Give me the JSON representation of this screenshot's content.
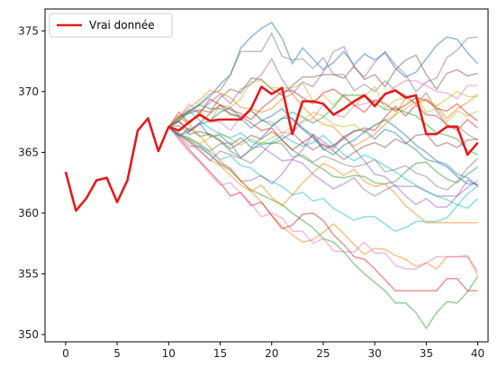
{
  "chart_data": {
    "type": "line",
    "title": "",
    "xlabel": "",
    "ylabel": "",
    "xlim": [
      -2,
      41
    ],
    "ylim": [
      349.4,
      376.8
    ],
    "xticks": [
      0,
      5,
      10,
      15,
      20,
      25,
      30,
      35,
      40
    ],
    "yticks": [
      350,
      355,
      360,
      365,
      370,
      375
    ],
    "legend": {
      "placement": "top-left",
      "entries": [
        "Vrai donnée"
      ]
    },
    "grid": false,
    "series": [
      {
        "name": "Vrai donnée",
        "color": "#e41a1c",
        "x": [
          0,
          1,
          2,
          3,
          4,
          5,
          6,
          7,
          8,
          9,
          10,
          11,
          12,
          13,
          14,
          15,
          16,
          17,
          18,
          19,
          20,
          21,
          22,
          23,
          24,
          25,
          26,
          27,
          28,
          29,
          30,
          31,
          32,
          33,
          34,
          35,
          36,
          37,
          38,
          39,
          40
        ],
        "values": [
          363.4,
          360.2,
          361.2,
          362.7,
          362.9,
          360.9,
          362.7,
          366.8,
          367.8,
          365.1,
          367.1,
          366.8,
          367.5,
          368.1,
          367.6,
          367.7,
          367.7,
          367.7,
          368.6,
          370.4,
          369.8,
          370.3,
          366.5,
          369.2,
          369.2,
          369.0,
          368.1,
          368.6,
          369.2,
          369.7,
          368.8,
          369.8,
          370.1,
          369.5,
          369.7,
          366.5,
          366.5,
          367.1,
          367.1,
          364.8,
          365.8
        ]
      }
    ],
    "simulations": {
      "start_x": 10,
      "colors": [
        "#1f77b4",
        "#ff7f0e",
        "#2ca02c",
        "#d62728",
        "#9467bd",
        "#8c564b",
        "#e377c2",
        "#7f7f7f",
        "#bcbd22",
        "#17becf"
      ],
      "paths": [
        [
          367.1,
          367.6,
          368.3,
          368.9,
          369.6,
          370.6,
          371.4,
          373.6,
          374.5,
          375.2,
          375.7,
          374.4,
          372.3,
          373.6,
          372.7,
          371.8,
          372.4,
          373.3,
          372.2,
          373.1,
          372.6,
          373.2,
          371.9,
          371.2,
          371.6,
          372.7,
          373.8,
          374.5,
          374.3,
          373.2,
          372.3
        ],
        [
          367.1,
          366.5,
          365.8,
          365.1,
          364.4,
          363.9,
          363.1,
          362.3,
          361.8,
          360.9,
          359.8,
          358.9,
          358.2,
          357.6,
          357.8,
          358.4,
          359.1,
          358.3,
          357.4,
          356.6,
          357.1,
          357.0,
          356.5,
          356.2,
          355.6,
          355.9,
          355.4,
          356.4,
          356.4,
          356.5,
          354.9
        ],
        [
          367.1,
          366.4,
          366.0,
          365.4,
          364.8,
          364.0,
          363.5,
          362.6,
          361.9,
          361.5,
          361.1,
          360.7,
          360.0,
          359.4,
          358.8,
          357.9,
          357.6,
          356.8,
          355.8,
          355.0,
          354.3,
          353.6,
          352.6,
          352.6,
          351.8,
          350.5,
          351.8,
          352.7,
          352.6,
          353.5,
          354.8
        ],
        [
          367.1,
          366.2,
          365.2,
          364.3,
          363.4,
          362.5,
          361.4,
          361.7,
          360.6,
          360.9,
          359.8,
          358.7,
          359.0,
          359.9,
          360.0,
          359.4,
          358.2,
          357.4,
          356.4,
          356.2,
          355.4,
          354.5,
          353.6,
          353.6,
          353.6,
          353.6,
          353.6,
          354.6,
          354.6,
          353.6,
          353.6
        ],
        [
          367.1,
          367.9,
          368.5,
          368.3,
          369.1,
          369.8,
          369.0,
          370.2,
          370.6,
          371.4,
          372.7,
          371.0,
          369.8,
          370.8,
          370.4,
          371.6,
          373.3,
          373.7,
          372.0,
          371.2,
          372.4,
          373.3,
          372.2,
          371.4,
          370.0,
          370.8,
          371.1,
          372.8,
          373.4,
          374.4,
          374.5
        ],
        [
          367.1,
          368.0,
          368.2,
          368.5,
          368.3,
          369.5,
          370.2,
          369.9,
          371.1,
          371.0,
          370.2,
          369.7,
          370.5,
          371.2,
          371.2,
          371.4,
          371.4,
          371.1,
          372.1,
          371.0,
          371.4,
          370.4,
          371.8,
          372.6,
          373.0,
          371.4,
          370.2,
          371.5,
          371.8,
          371.3,
          371.5
        ],
        [
          367.1,
          366.0,
          365.0,
          364.2,
          363.2,
          362.3,
          362.5,
          361.6,
          360.8,
          359.7,
          360.0,
          359.6,
          358.5,
          358.5,
          357.5,
          357.9,
          356.9,
          356.8,
          356.8,
          357.6,
          356.7,
          356.7,
          355.7,
          355.4,
          355.4,
          355.9,
          356.4,
          356.4,
          356.4,
          356.4,
          355.2
        ],
        [
          367.1,
          367.6,
          368.4,
          369.0,
          369.8,
          370.1,
          371.4,
          373.3,
          373.3,
          373.3,
          374.8,
          372.9,
          372.6,
          372.7,
          371.9,
          372.8,
          371.4,
          371.4,
          370.1,
          370.6,
          370.0,
          370.9,
          370.1,
          369.7,
          369.0,
          369.9,
          368.4,
          367.2,
          367.2,
          366.5,
          366.0
        ],
        [
          367.1,
          367.9,
          367.3,
          368.4,
          367.5,
          368.9,
          368.7,
          369.4,
          370.8,
          370.9,
          370.3,
          370.3,
          370.3,
          370.7,
          369.2,
          369.7,
          368.9,
          369.8,
          368.8,
          369.6,
          370.4,
          368.6,
          369.3,
          369.5,
          369.7,
          368.3,
          368.6,
          367.5,
          368.4,
          368.0,
          368.4
        ],
        [
          367.1,
          366.5,
          366.2,
          365.6,
          365.0,
          364.4,
          364.7,
          363.9,
          363.7,
          363.0,
          362.6,
          362.2,
          361.5,
          361.7,
          361.0,
          361.2,
          360.4,
          359.9,
          359.4,
          359.7,
          359.7,
          359.1,
          358.5,
          358.8,
          359.3,
          359.3,
          359.3,
          359.6,
          360.6,
          361.6,
          362.2
        ],
        [
          367.1,
          367.5,
          366.8,
          367.4,
          366.3,
          366.4,
          365.6,
          366.2,
          365.4,
          366.2,
          367.1,
          367.8,
          367.8,
          367.0,
          366.4,
          365.2,
          365.6,
          366.1,
          366.8,
          366.8,
          366.1,
          366.9,
          366.6,
          365.8,
          365.2,
          364.4,
          364.2,
          363.8,
          363.0,
          362.4,
          362.4
        ],
        [
          367.1,
          367.9,
          368.7,
          369.3,
          370.1,
          369.9,
          369.5,
          368.7,
          368.6,
          368.3,
          368.6,
          369.4,
          369.8,
          368.8,
          367.9,
          367.3,
          367.1,
          366.2,
          365.5,
          366.0,
          366.5,
          367.3,
          368.1,
          369.5,
          369.0,
          369.4,
          368.8,
          367.8,
          368.6,
          369.1,
          369.8
        ],
        [
          367.1,
          366.3,
          367.0,
          366.3,
          366.5,
          365.9,
          365.1,
          364.6,
          365.2,
          365.8,
          365.7,
          366.0,
          365.2,
          364.6,
          364.1,
          363.6,
          363.0,
          362.9,
          363.1,
          363.0,
          362.5,
          362.4,
          362.6,
          363.4,
          364.1,
          364.2,
          363.4,
          362.8,
          362.5,
          363.2,
          363.8
        ],
        [
          367.1,
          368.3,
          367.4,
          368.2,
          369.4,
          368.9,
          368.1,
          368.0,
          367.4,
          366.8,
          367.0,
          366.0,
          365.2,
          365.8,
          366.4,
          365.5,
          365.5,
          366.3,
          366.7,
          367.0,
          366.8,
          367.9,
          368.8,
          368.0,
          368.9,
          368.1,
          368.0,
          367.3,
          366.8,
          367.7,
          367.0
        ],
        [
          367.1,
          366.4,
          365.5,
          365.5,
          364.8,
          364.1,
          363.7,
          362.6,
          362.7,
          363.1,
          362.4,
          363.2,
          364.4,
          365.2,
          366.5,
          365.9,
          365.3,
          366.3,
          365.3,
          364.3,
          363.2,
          363.0,
          362.2,
          362.2,
          362.2,
          361.8,
          361.4,
          361.4,
          361.4,
          362.7,
          362.3
        ],
        [
          367.1,
          367.2,
          366.5,
          366.7,
          366.5,
          366.0,
          365.3,
          365.8,
          366.4,
          366.1,
          366.7,
          366.1,
          366.6,
          365.8,
          365.2,
          365.7,
          365.1,
          364.4,
          365.0,
          365.5,
          365.8,
          365.4,
          366.1,
          365.7,
          366.4,
          366.5,
          365.5,
          365.8,
          365.4,
          366.0,
          366.1
        ],
        [
          367.1,
          367.9,
          369.0,
          368.2,
          367.5,
          367.5,
          366.8,
          367.9,
          368.5,
          367.6,
          367.5,
          366.6,
          366.6,
          367.5,
          367.8,
          368.9,
          368.1,
          367.9,
          368.8,
          369.0,
          369.2,
          369.7,
          370.4,
          370.9,
          370.9,
          370.5,
          370.0,
          369.9,
          369.4,
          370.5,
          370.5
        ],
        [
          367.1,
          366.5,
          366.1,
          365.7,
          365.1,
          365.7,
          365.8,
          364.5,
          364.1,
          364.9,
          365.8,
          365.7,
          364.6,
          364.8,
          364.2,
          364.7,
          364.4,
          364.0,
          363.8,
          364.0,
          364.4,
          363.4,
          363.6,
          363.9,
          363.3,
          363.0,
          362.2,
          361.9,
          362.6,
          363.7,
          364.5
        ],
        [
          367.1,
          366.6,
          366.1,
          365.7,
          366.2,
          366.6,
          366.1,
          365.6,
          366.1,
          365.7,
          366.2,
          366.6,
          367.1,
          367.6,
          368.3,
          368.0,
          367.3,
          367.1,
          367.3,
          366.6,
          367.3,
          367.6,
          368.1,
          368.6,
          369.2,
          369.2,
          368.8,
          369.4,
          370.0,
          369.6,
          369.6
        ],
        [
          367.1,
          367.7,
          368.4,
          367.6,
          367.0,
          366.5,
          366.2,
          366.6,
          365.9,
          365.6,
          365.8,
          366.4,
          365.9,
          365.5,
          365.8,
          366.4,
          365.6,
          364.8,
          364.3,
          364.8,
          364.4,
          363.9,
          363.4,
          362.8,
          362.3,
          361.8,
          361.4,
          361.1,
          360.7,
          360.4,
          361.2
        ],
        [
          367.1,
          366.4,
          366.7,
          367.3,
          367.6,
          368.3,
          368.7,
          367.8,
          367.0,
          367.6,
          368.0,
          368.6,
          367.7,
          366.9,
          366.2,
          365.3,
          364.8,
          365.6,
          366.0,
          366.7,
          367.2,
          367.7,
          367.1,
          366.4,
          365.6,
          365.0,
          364.3,
          364.0,
          363.2,
          362.9,
          362.2
        ],
        [
          367.1,
          368.0,
          367.3,
          366.4,
          365.4,
          364.3,
          363.6,
          362.7,
          361.8,
          362.3,
          361.3,
          360.6,
          361.5,
          362.5,
          363.3,
          364.1,
          363.7,
          363.1,
          363.6,
          362.6,
          362.2,
          362.4,
          361.6,
          360.6,
          359.9,
          359.2,
          359.2,
          359.2,
          359.2,
          359.2,
          359.2
        ],
        [
          367.1,
          367.8,
          368.4,
          368.9,
          368.6,
          368.6,
          368.2,
          367.8,
          368.4,
          367.7,
          367.2,
          367.8,
          368.3,
          367.9,
          367.4,
          367.9,
          368.7,
          369.7,
          369.7,
          369.7,
          369.1,
          368.5,
          368.6,
          368.3,
          368.0,
          367.3,
          366.6,
          366.4,
          366.1,
          365.2,
          364.8
        ],
        [
          367.1,
          367.6,
          366.7,
          367.4,
          368.2,
          368.9,
          368.5,
          368.2,
          367.7,
          368.6,
          369.3,
          370.0,
          370.1,
          369.5,
          369.0,
          369.9,
          370.2,
          369.6,
          368.9,
          368.3,
          369.3,
          369.0,
          368.4,
          368.9,
          369.5,
          369.3,
          368.6,
          368.4,
          369.0,
          368.2,
          367.6
        ],
        [
          367.1,
          366.5,
          365.9,
          365.2,
          364.3,
          365.1,
          364.8,
          364.5,
          365.3,
          365.5,
          364.9,
          364.3,
          364.4,
          364.1,
          363.2,
          362.6,
          362.0,
          362.4,
          362.9,
          361.9,
          361.4,
          361.9,
          362.3,
          361.4,
          360.7,
          361.2,
          360.5,
          360.5,
          361.4,
          362.1,
          362.7
        ]
      ]
    }
  }
}
